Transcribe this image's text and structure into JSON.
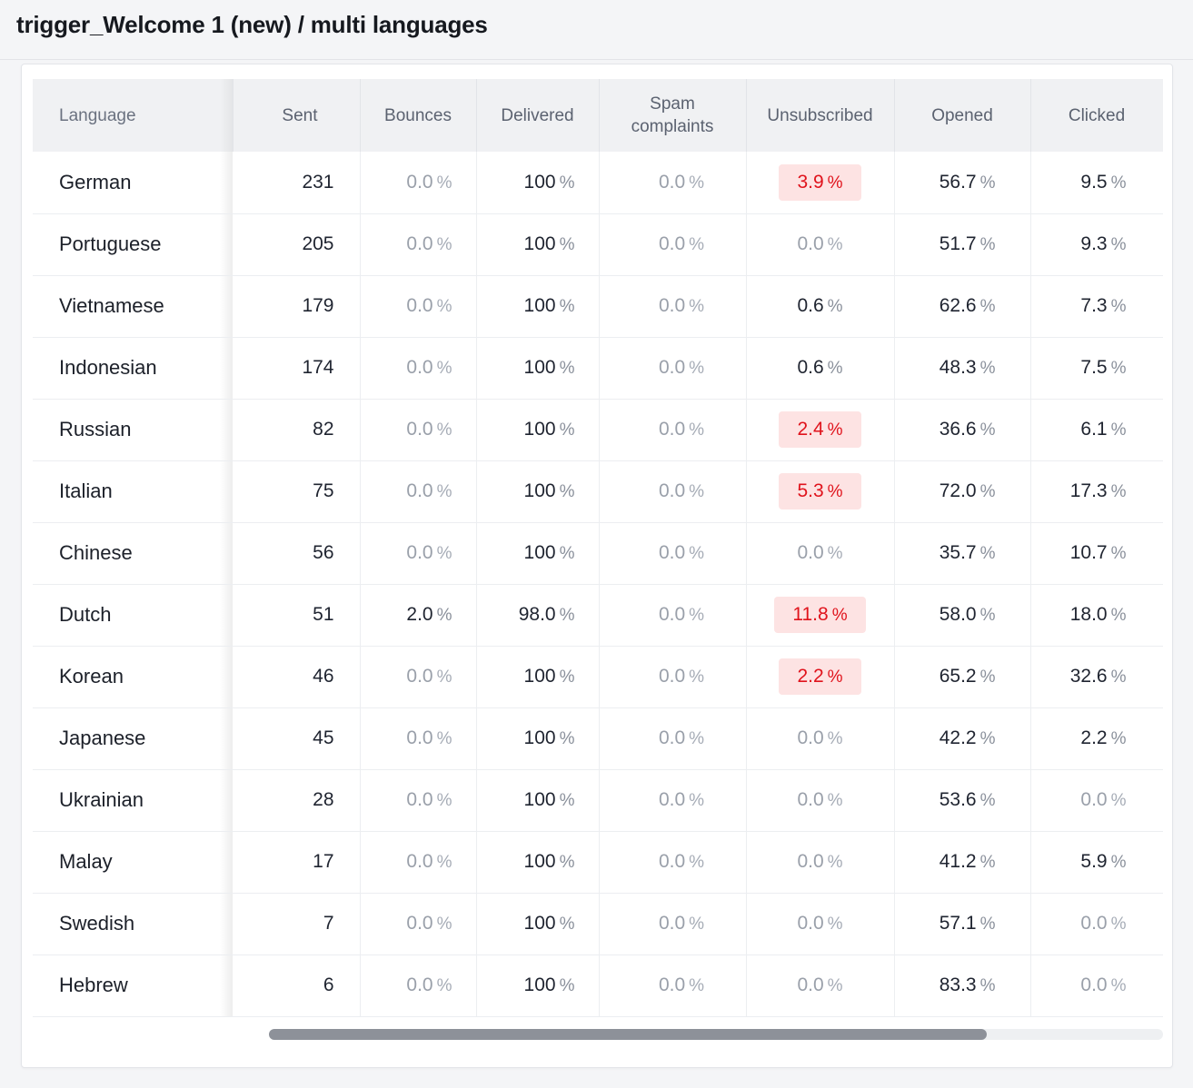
{
  "page": {
    "title": "trigger_Welcome 1 (new) / multi languages"
  },
  "colors": {
    "alert_bg": "#fde3e3",
    "alert_text": "#e0131c",
    "header_bg": "#f0f1f3"
  },
  "table": {
    "headers": {
      "language": "Language",
      "sent": "Sent",
      "bounces": "Bounces",
      "delivered": "Delivered",
      "spam_line1": "Spam",
      "spam_line2": "complaints",
      "unsubscribed": "Unsubscribed",
      "opened": "Opened",
      "clicked": "Clicked"
    },
    "pct_sign": "%",
    "rows": [
      {
        "language": "German",
        "sent": "231",
        "bounces": "0.0",
        "delivered": "100",
        "spam": "0.0",
        "unsubscribed": "3.9",
        "unsub_alert": true,
        "opened": "56.7",
        "clicked": "9.5"
      },
      {
        "language": "Portuguese",
        "sent": "205",
        "bounces": "0.0",
        "delivered": "100",
        "spam": "0.0",
        "unsubscribed": "0.0",
        "unsub_alert": false,
        "opened": "51.7",
        "clicked": "9.3"
      },
      {
        "language": "Vietnamese",
        "sent": "179",
        "bounces": "0.0",
        "delivered": "100",
        "spam": "0.0",
        "unsubscribed": "0.6",
        "unsub_alert": false,
        "opened": "62.6",
        "clicked": "7.3"
      },
      {
        "language": "Indonesian",
        "sent": "174",
        "bounces": "0.0",
        "delivered": "100",
        "spam": "0.0",
        "unsubscribed": "0.6",
        "unsub_alert": false,
        "opened": "48.3",
        "clicked": "7.5"
      },
      {
        "language": "Russian",
        "sent": "82",
        "bounces": "0.0",
        "delivered": "100",
        "spam": "0.0",
        "unsubscribed": "2.4",
        "unsub_alert": true,
        "opened": "36.6",
        "clicked": "6.1"
      },
      {
        "language": "Italian",
        "sent": "75",
        "bounces": "0.0",
        "delivered": "100",
        "spam": "0.0",
        "unsubscribed": "5.3",
        "unsub_alert": true,
        "opened": "72.0",
        "clicked": "17.3"
      },
      {
        "language": "Chinese",
        "sent": "56",
        "bounces": "0.0",
        "delivered": "100",
        "spam": "0.0",
        "unsubscribed": "0.0",
        "unsub_alert": false,
        "opened": "35.7",
        "clicked": "10.7"
      },
      {
        "language": "Dutch",
        "sent": "51",
        "bounces": "2.0",
        "delivered": "98.0",
        "spam": "0.0",
        "unsubscribed": "11.8",
        "unsub_alert": true,
        "opened": "58.0",
        "clicked": "18.0"
      },
      {
        "language": "Korean",
        "sent": "46",
        "bounces": "0.0",
        "delivered": "100",
        "spam": "0.0",
        "unsubscribed": "2.2",
        "unsub_alert": true,
        "opened": "65.2",
        "clicked": "32.6"
      },
      {
        "language": "Japanese",
        "sent": "45",
        "bounces": "0.0",
        "delivered": "100",
        "spam": "0.0",
        "unsubscribed": "0.0",
        "unsub_alert": false,
        "opened": "42.2",
        "clicked": "2.2"
      },
      {
        "language": "Ukrainian",
        "sent": "28",
        "bounces": "0.0",
        "delivered": "100",
        "spam": "0.0",
        "unsubscribed": "0.0",
        "unsub_alert": false,
        "opened": "53.6",
        "clicked": "0.0"
      },
      {
        "language": "Malay",
        "sent": "17",
        "bounces": "0.0",
        "delivered": "100",
        "spam": "0.0",
        "unsubscribed": "0.0",
        "unsub_alert": false,
        "opened": "41.2",
        "clicked": "5.9"
      },
      {
        "language": "Swedish",
        "sent": "7",
        "bounces": "0.0",
        "delivered": "100",
        "spam": "0.0",
        "unsubscribed": "0.0",
        "unsub_alert": false,
        "opened": "57.1",
        "clicked": "0.0"
      },
      {
        "language": "Hebrew",
        "sent": "6",
        "bounces": "0.0",
        "delivered": "100",
        "spam": "0.0",
        "unsubscribed": "0.0",
        "unsub_alert": false,
        "opened": "83.3",
        "clicked": "0.0"
      }
    ]
  }
}
